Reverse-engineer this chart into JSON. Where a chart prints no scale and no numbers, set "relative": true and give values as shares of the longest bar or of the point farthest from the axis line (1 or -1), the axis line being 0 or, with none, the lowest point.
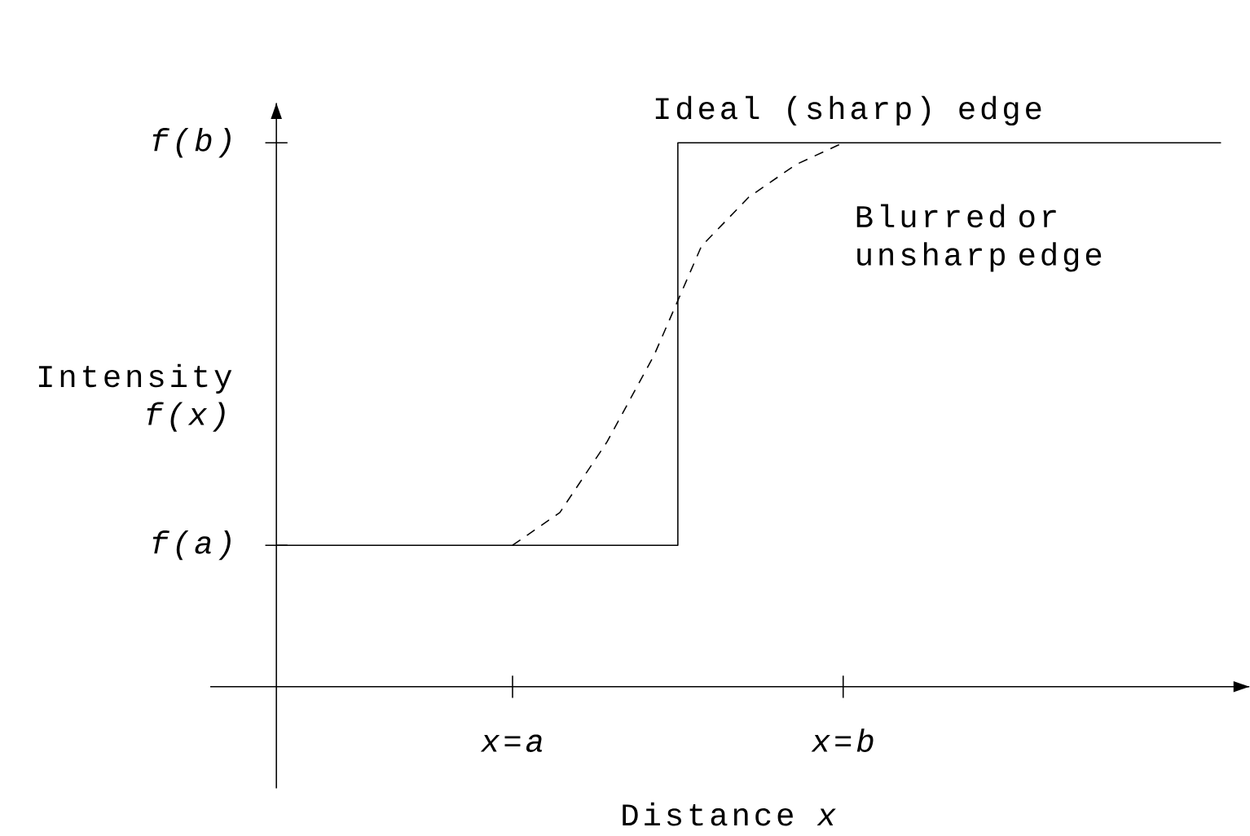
{
  "chart_data": {
    "type": "line",
    "relative": true,
    "xlabel": "Distance  *x*",
    "ylabel": "Intensity *f(x)*",
    "categories": [
      null,
      null,
      null,
      null,
      null,
      "x=a",
      null,
      null,
      null,
      null,
      null,
      null,
      "x=b",
      null,
      null,
      null,
      null,
      null,
      null,
      null,
      null
    ],
    "series": [
      {
        "type": "step",
        "color": "#000000",
        "line_style": "solid",
        "values": [
          0.26,
          0.26,
          0.26,
          0.26,
          0.26,
          0.26,
          0.26,
          0.26,
          0.26,
          1,
          1,
          1,
          1,
          1,
          1,
          1,
          1,
          1,
          1,
          1,
          1
        ]
      },
      {
        "color": "#000000",
        "line_style": "dashed",
        "values": [
          null,
          null,
          null,
          null,
          null,
          0.26,
          0.32,
          0.45,
          0.61,
          0.81,
          0.9,
          0.96,
          1,
          null,
          null,
          null,
          null,
          null,
          null,
          null,
          null
        ]
      }
    ],
    "annotations": [
      "Ideal (sharp) edge",
      "Blurred or unsharp edge",
      "f(a)",
      "f(b)"
    ]
  }
}
